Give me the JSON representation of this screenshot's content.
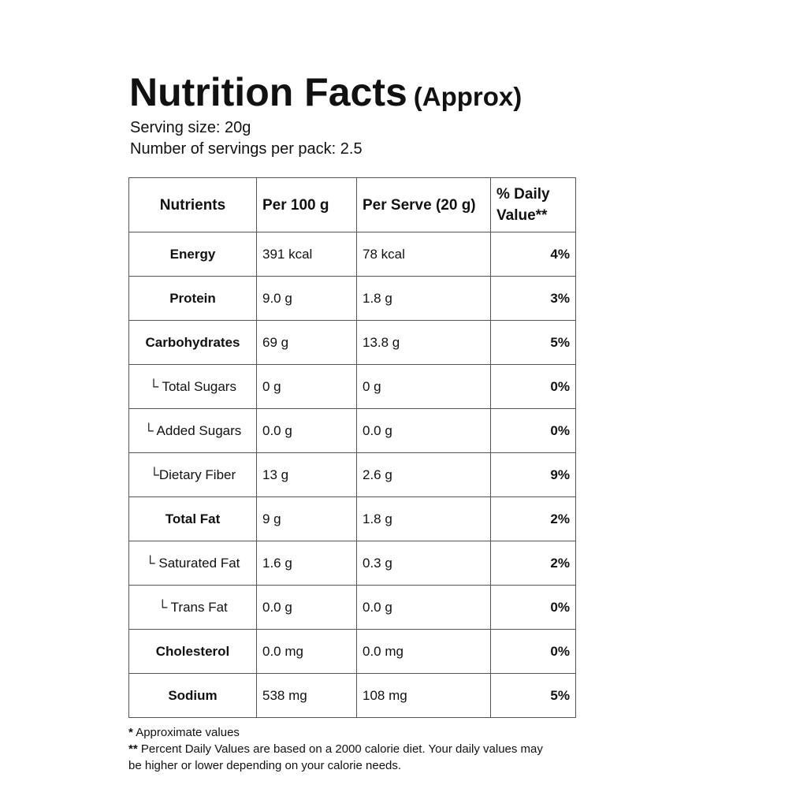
{
  "header": {
    "title": "Nutrition Facts",
    "subtitle": "(Approx)",
    "serving_size": "Serving size: 20g",
    "servings_per_pack": "Number of servings per pack: 2.5"
  },
  "table": {
    "columns": [
      "Nutrients",
      "Per 100 g",
      "Per Serve (20 g)",
      "% Daily Value**"
    ],
    "rows": [
      [
        "Energy",
        "391 kcal",
        "78 kcal",
        "4%"
      ],
      [
        "Protein",
        "9.0 g",
        "1.8 g",
        "3%"
      ],
      [
        "Carbohydrates",
        "69 g",
        "13.8 g",
        "5%"
      ],
      [
        "└ Total Sugars",
        "0 g",
        "0 g",
        "0%"
      ],
      [
        "└ Added Sugars",
        "0.0 g",
        "0.0 g",
        "0%"
      ],
      [
        "└Dietary Fiber",
        "13 g",
        "2.6 g",
        "9%"
      ],
      [
        "Total Fat",
        "9 g",
        "1.8 g",
        "2%"
      ],
      [
        "└ Saturated Fat",
        "1.6 g",
        "0.3 g",
        "2%"
      ],
      [
        "└ Trans Fat",
        "0.0 g",
        "0.0 g",
        "0%"
      ],
      [
        "Cholesterol",
        "0.0 mg",
        "0.0 mg",
        "0%"
      ],
      [
        "Sodium",
        "538 mg",
        "108 mg",
        "5%"
      ]
    ]
  },
  "footnotes": [
    {
      "marker": "*",
      "text": "Approximate values"
    },
    {
      "marker": "**",
      "text": "Percent Daily Values are based on a 2000 calorie diet. Your daily values may be higher or lower depending on your calorie needs."
    }
  ]
}
